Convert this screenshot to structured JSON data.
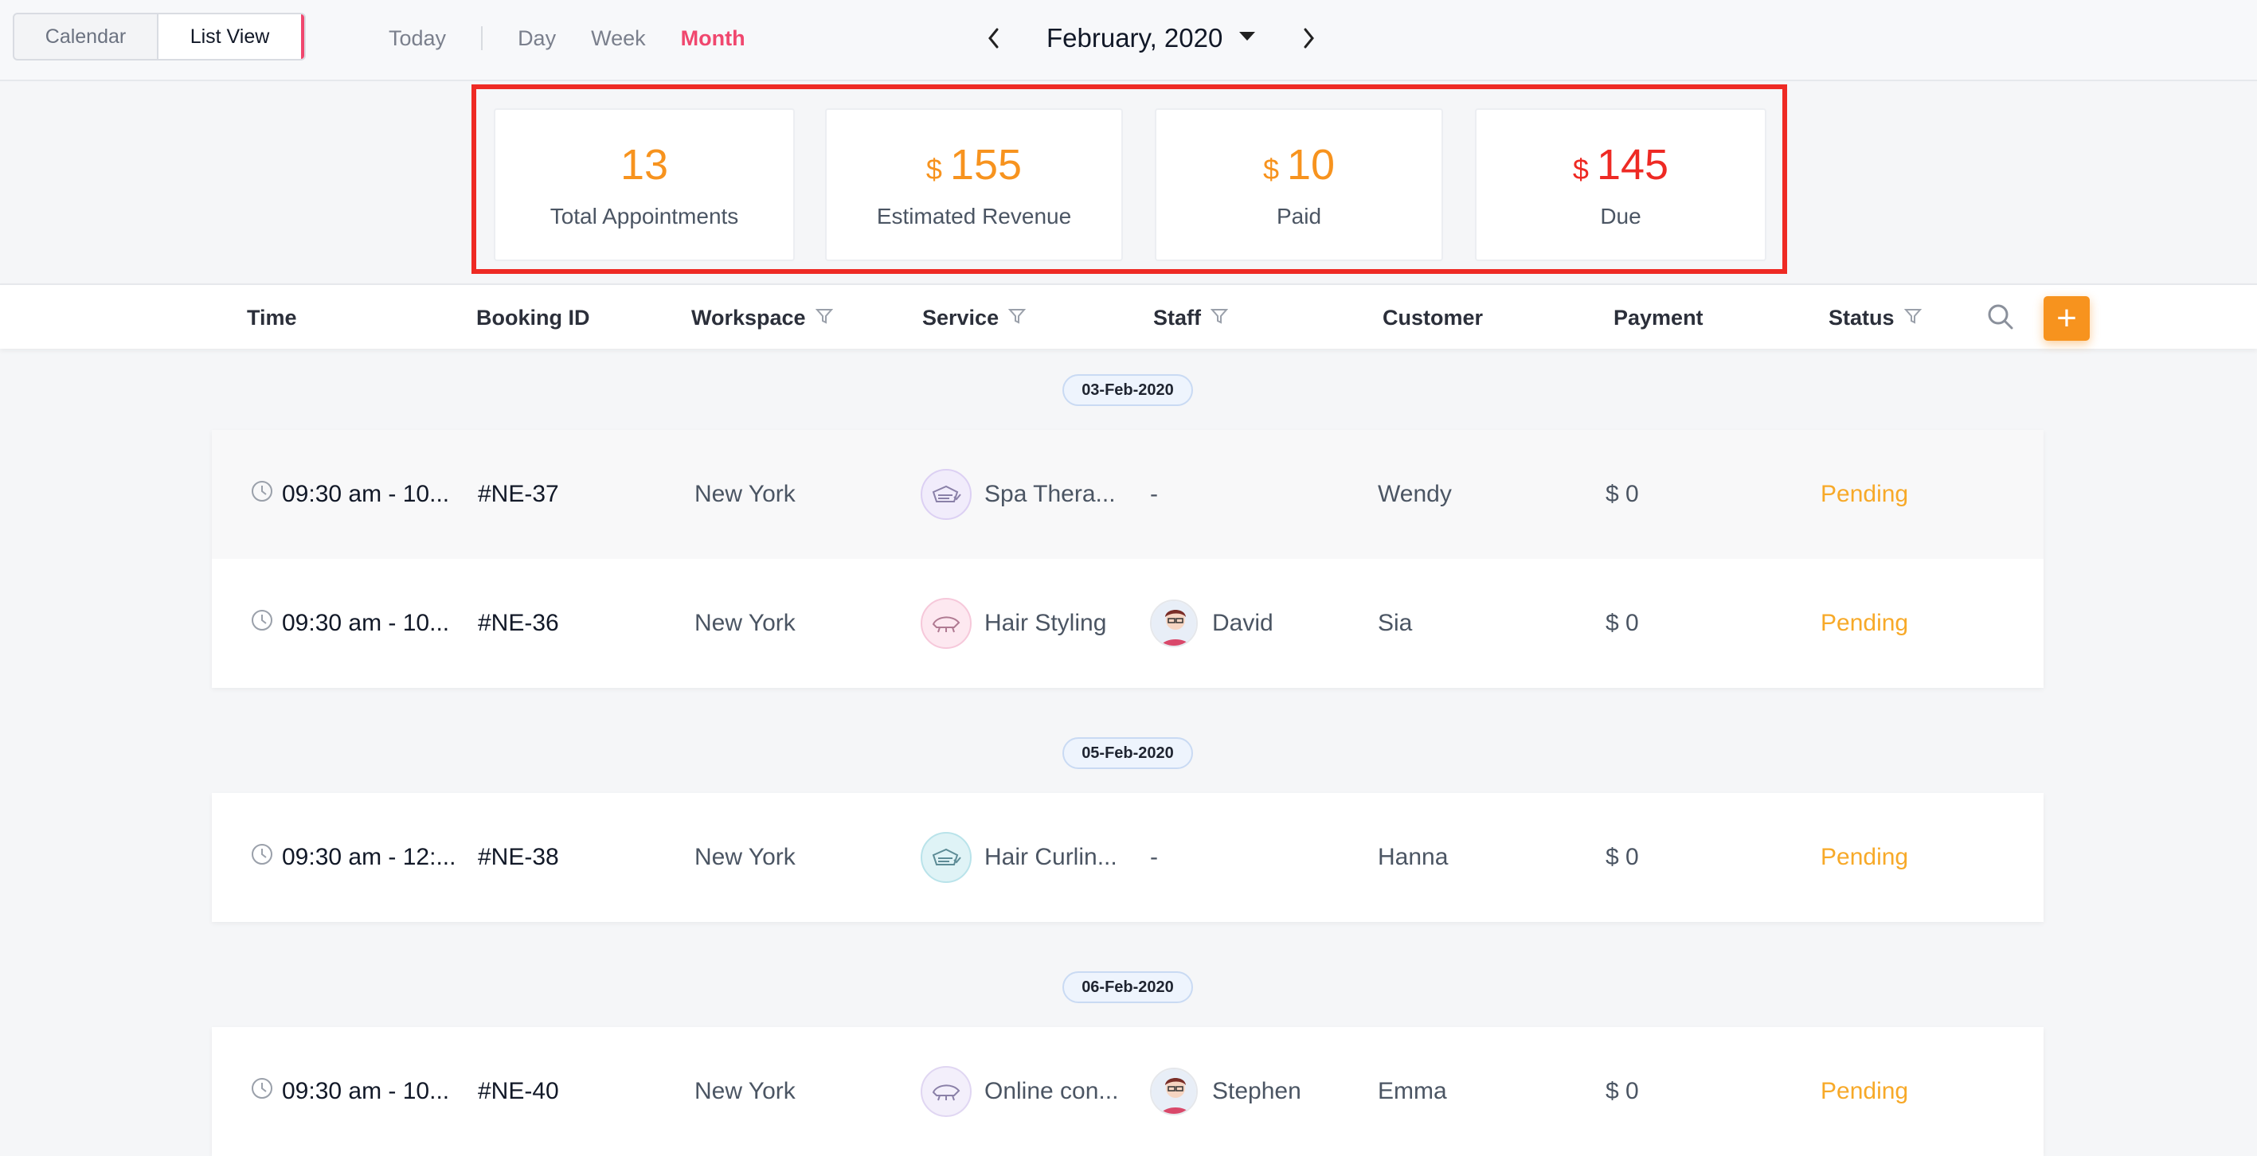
{
  "toolbar": {
    "view_toggle": [
      "Calendar",
      "List View"
    ],
    "ranges": [
      "Today",
      "Day",
      "Week",
      "Month"
    ],
    "active_range": "Month",
    "month_label": "February, 2020"
  },
  "summary": {
    "total": {
      "value": "13",
      "label": "Total Appointments"
    },
    "revenue": {
      "currency": "$",
      "value": "155",
      "label": "Estimated Revenue"
    },
    "paid": {
      "currency": "$",
      "value": "10",
      "label": "Paid"
    },
    "due": {
      "currency": "$",
      "value": "145",
      "label": "Due"
    }
  },
  "table": {
    "columns": [
      "Time",
      "Booking ID",
      "Workspace",
      "Service",
      "Staff",
      "Customer",
      "Payment",
      "Status"
    ],
    "groups": [
      {
        "date": "03-Feb-2020",
        "rows": [
          {
            "time": "09:30 am - 10...",
            "booking_id": "#NE-37",
            "workspace": "New York",
            "service": "Spa Thera...",
            "staff": "-",
            "customer": "Wendy",
            "payment": "$ 0",
            "status": "Pending"
          },
          {
            "time": "09:30 am - 10...",
            "booking_id": "#NE-36",
            "workspace": "New York",
            "service": "Hair Styling",
            "staff": "David",
            "customer": "Sia",
            "payment": "$ 0",
            "status": "Pending"
          }
        ]
      },
      {
        "date": "05-Feb-2020",
        "rows": [
          {
            "time": "09:30 am - 12:...",
            "booking_id": "#NE-38",
            "workspace": "New York",
            "service": "Hair Curlin...",
            "staff": "-",
            "customer": "Hanna",
            "payment": "$ 0",
            "status": "Pending"
          }
        ]
      },
      {
        "date": "06-Feb-2020",
        "rows": [
          {
            "time": "09:30 am - 10...",
            "booking_id": "#NE-40",
            "workspace": "New York",
            "service": "Online con...",
            "staff": "Stephen",
            "customer": "Emma",
            "payment": "$ 0",
            "status": "Pending"
          }
        ]
      }
    ]
  },
  "colors": {
    "accent_pink": "#f0476e",
    "orange": "#f7931e",
    "red": "#ee2a24",
    "pending": "#f7a928"
  }
}
